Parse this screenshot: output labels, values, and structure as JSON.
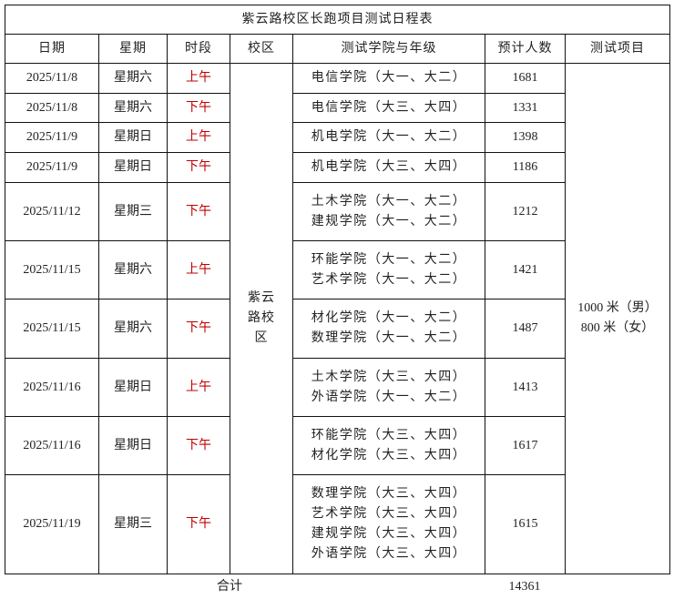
{
  "title": "紫云路校区长跑项目测试日程表",
  "headers": [
    "日期",
    "星期",
    "时段",
    "校区",
    "测试学院与年级",
    "预计人数",
    "测试项目"
  ],
  "campus": "紫云路校区",
  "test_items": [
    "1000 米（男）",
    "800 米（女）"
  ],
  "rows": [
    {
      "date": "2025/11/8",
      "weekday": "星期六",
      "period": "上午",
      "depts": [
        "电信学院（大一、大二）"
      ],
      "count": "1681"
    },
    {
      "date": "2025/11/8",
      "weekday": "星期六",
      "period": "下午",
      "depts": [
        "电信学院（大三、大四）"
      ],
      "count": "1331"
    },
    {
      "date": "2025/11/9",
      "weekday": "星期日",
      "period": "上午",
      "depts": [
        "机电学院（大一、大二）"
      ],
      "count": "1398"
    },
    {
      "date": "2025/11/9",
      "weekday": "星期日",
      "period": "下午",
      "depts": [
        "机电学院（大三、大四）"
      ],
      "count": "1186"
    },
    {
      "date": "2025/11/12",
      "weekday": "星期三",
      "period": "下午",
      "depts": [
        "土木学院（大一、大二）",
        "建规学院（大一、大二）"
      ],
      "count": "1212"
    },
    {
      "date": "2025/11/15",
      "weekday": "星期六",
      "period": "上午",
      "depts": [
        "环能学院（大一、大二）",
        "艺术学院（大一、大二）"
      ],
      "count": "1421"
    },
    {
      "date": "2025/11/15",
      "weekday": "星期六",
      "period": "下午",
      "depts": [
        "材化学院（大一、大二）",
        "数理学院（大一、大二）"
      ],
      "count": "1487"
    },
    {
      "date": "2025/11/16",
      "weekday": "星期日",
      "period": "上午",
      "depts": [
        "土木学院（大三、大四）",
        "外语学院（大一、大二）"
      ],
      "count": "1413"
    },
    {
      "date": "2025/11/16",
      "weekday": "星期日",
      "period": "下午",
      "depts": [
        "环能学院（大三、大四）",
        "材化学院（大三、大四）"
      ],
      "count": "1617"
    },
    {
      "date": "2025/11/19",
      "weekday": "星期三",
      "period": "下午",
      "depts": [
        "数理学院（大三、大四）",
        "艺术学院（大三、大四）",
        "建规学院（大三、大四）",
        "外语学院（大三、大四）"
      ],
      "count": "1615"
    }
  ],
  "total_label": "合计",
  "total_value": "14361",
  "colors": {
    "period_text": "#c00000",
    "border": "#111111"
  }
}
